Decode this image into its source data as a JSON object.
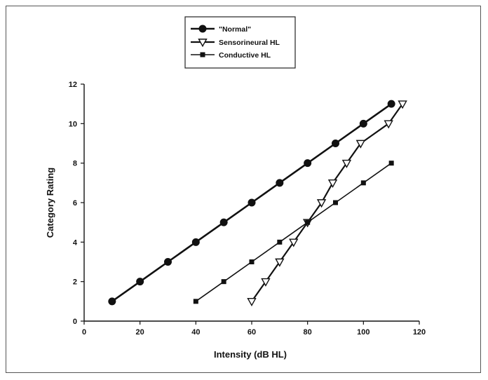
{
  "chart_data": {
    "type": "line",
    "title": "",
    "xlabel": "Intensity (dB HL)",
    "ylabel": "Category Rating",
    "xlim": [
      0,
      120
    ],
    "ylim": [
      0,
      12
    ],
    "x_ticks": [
      0,
      20,
      40,
      60,
      80,
      100,
      120
    ],
    "y_ticks": [
      0,
      2,
      4,
      6,
      8,
      10,
      12
    ],
    "grid": false,
    "legend_position": "top-center",
    "series": [
      {
        "name": "\"Normal\"",
        "marker": "circle",
        "color": "#111111",
        "x": [
          10,
          20,
          30,
          40,
          50,
          60,
          70,
          80,
          90,
          100,
          110
        ],
        "y": [
          1,
          2,
          3,
          4,
          5,
          6,
          7,
          8,
          9,
          10,
          11
        ]
      },
      {
        "name": "Sensorineural HL",
        "marker": "triangle-down-open",
        "color": "#111111",
        "x": [
          60,
          65,
          70,
          75,
          80,
          85,
          89,
          94,
          99,
          109,
          114
        ],
        "y": [
          1,
          2,
          3,
          4,
          5,
          6,
          7,
          8,
          9,
          10,
          11
        ]
      },
      {
        "name": "Conductive HL",
        "marker": "square",
        "color": "#111111",
        "x": [
          40,
          50,
          60,
          70,
          80,
          90,
          100,
          110
        ],
        "y": [
          1,
          2,
          3,
          4,
          5,
          6,
          7,
          8
        ]
      }
    ]
  }
}
